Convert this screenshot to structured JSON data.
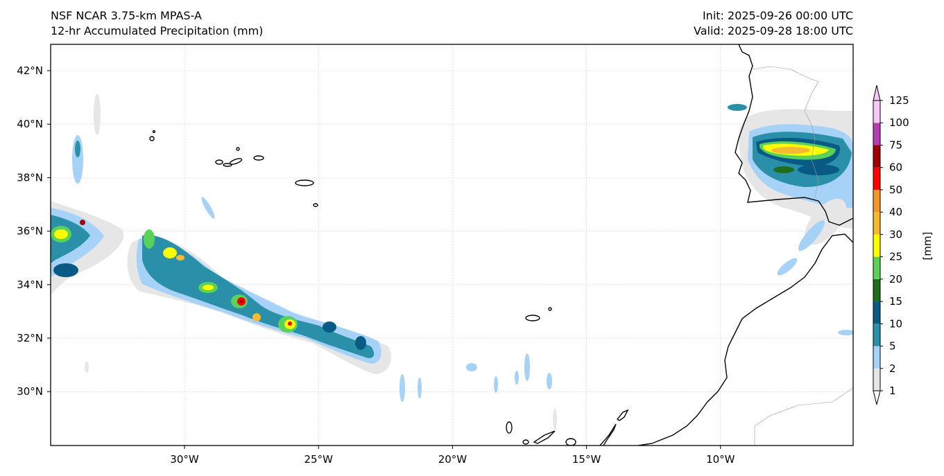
{
  "header": {
    "model": "NSF NCAR 3.75-km MPAS-A",
    "field": "12-hr Accumulated Precipitation (mm)",
    "init": "Init: 2025-09-26 00:00 UTC",
    "valid": "Valid: 2025-09-28 18:00 UTC"
  },
  "map": {
    "lon_range": [
      -35,
      -5
    ],
    "lat_range": [
      28,
      43
    ],
    "lon_ticks": [
      {
        "value": -30,
        "label": "30°W"
      },
      {
        "value": -25,
        "label": "25°W"
      },
      {
        "value": -20,
        "label": "20°W"
      },
      {
        "value": -15,
        "label": "15°W"
      },
      {
        "value": -10,
        "label": "10°W"
      }
    ],
    "lat_ticks": [
      {
        "value": 42,
        "label": "42°N"
      },
      {
        "value": 40,
        "label": "40°N"
      },
      {
        "value": 38,
        "label": "38°N"
      },
      {
        "value": 36,
        "label": "36°N"
      },
      {
        "value": 34,
        "label": "34°N"
      },
      {
        "value": 32,
        "label": "32°N"
      },
      {
        "value": 30,
        "label": "30°N"
      }
    ],
    "grid": true
  },
  "colorbar": {
    "unit_label": "[mm]",
    "levels": [
      {
        "label": "1",
        "color": "#e6e6e6"
      },
      {
        "label": "2",
        "color": "#a6d2f7"
      },
      {
        "label": "5",
        "color": "#2a8fa8"
      },
      {
        "label": "10",
        "color": "#0a5a86"
      },
      {
        "label": "15",
        "color": "#1e6e1e"
      },
      {
        "label": "20",
        "color": "#5ad25a"
      },
      {
        "label": "25",
        "color": "#ffff00"
      },
      {
        "label": "30",
        "color": "#f5b932"
      },
      {
        "label": "40",
        "color": "#f0962d"
      },
      {
        "label": "50",
        "color": "#ff0000"
      },
      {
        "label": "60",
        "color": "#a00000"
      },
      {
        "label": "75",
        "color": "#b43cb4"
      },
      {
        "label": "100",
        "color": "#f5c8f5"
      },
      {
        "label": "125",
        "color": ""
      }
    ],
    "under_color": "#ffffff",
    "over_color": "#f5c8f5"
  }
}
